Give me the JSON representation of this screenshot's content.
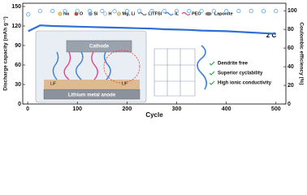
{
  "chart_data": {
    "type": "line",
    "x_label": "Cycle",
    "y_label": "Discharge capacity (mAh g⁻¹)",
    "y2_label": "Coulombic efficiency (%)",
    "annotation": "2 C",
    "x": [
      1,
      25,
      50,
      75,
      100,
      125,
      150,
      175,
      200,
      225,
      250,
      275,
      300,
      325,
      350,
      375,
      400,
      425,
      450,
      475,
      500
    ],
    "series": [
      {
        "name": "Discharge capacity",
        "color": "#2f6fd6",
        "marker": "line",
        "values": [
          112,
          121,
          120,
          119.5,
          119,
          118.5,
          118,
          117.5,
          117,
          116.5,
          116,
          115,
          114.5,
          114,
          113,
          112.5,
          112,
          111,
          110,
          109,
          108
        ]
      },
      {
        "name": "Coulombic efficiency",
        "color": "#5aa9e6",
        "marker": "open-circle",
        "axis": "y2",
        "values": [
          96,
          99.6,
          99.7,
          99.5,
          99.8,
          99.6,
          99.7,
          99.5,
          99.6,
          99.8,
          99.6,
          99.7,
          99.5,
          99.6,
          99.7,
          99.5,
          99.6,
          99.7,
          99.6,
          99.5,
          99.6
        ]
      }
    ],
    "xlim": [
      -10,
      520
    ],
    "xticks": [
      0,
      100,
      200,
      300,
      400,
      500
    ],
    "ylim": [
      0,
      155
    ],
    "yticks": [
      0,
      30,
      60,
      90,
      120,
      150
    ],
    "y2lim": [
      0,
      108
    ],
    "y2ticks": [
      0,
      20,
      40,
      60,
      80,
      100
    ]
  },
  "illustration": {
    "legend": [
      {
        "label": "Na",
        "color": "#f2c94c",
        "marker": "dot"
      },
      {
        "label": "O",
        "color": "#e03c31",
        "marker": "dot"
      },
      {
        "label": "Si",
        "color": "#8a9bb5",
        "marker": "dot"
      },
      {
        "label": "H",
        "color": "#f0f0f0",
        "marker": "dot"
      },
      {
        "label": "Mg, Li",
        "color": "#e7d27c",
        "marker": "dot"
      },
      {
        "label": "LiTFSI",
        "color": "#6c6c6c",
        "marker": "wave"
      },
      {
        "label": "IL",
        "color": "#3b7fd9",
        "marker": "wave"
      },
      {
        "label": "PEO",
        "color": "#e2458f",
        "marker": "wave"
      },
      {
        "label": "Laponite",
        "color": "#7c7c7c",
        "marker": "disk"
      }
    ],
    "cathode": "Cathode",
    "anode": "Lithium metal anode",
    "interphase": [
      "LiF",
      "LiF"
    ],
    "features": [
      "Dendrite free",
      "Superior cyclability",
      "High ionic conductivity"
    ]
  }
}
